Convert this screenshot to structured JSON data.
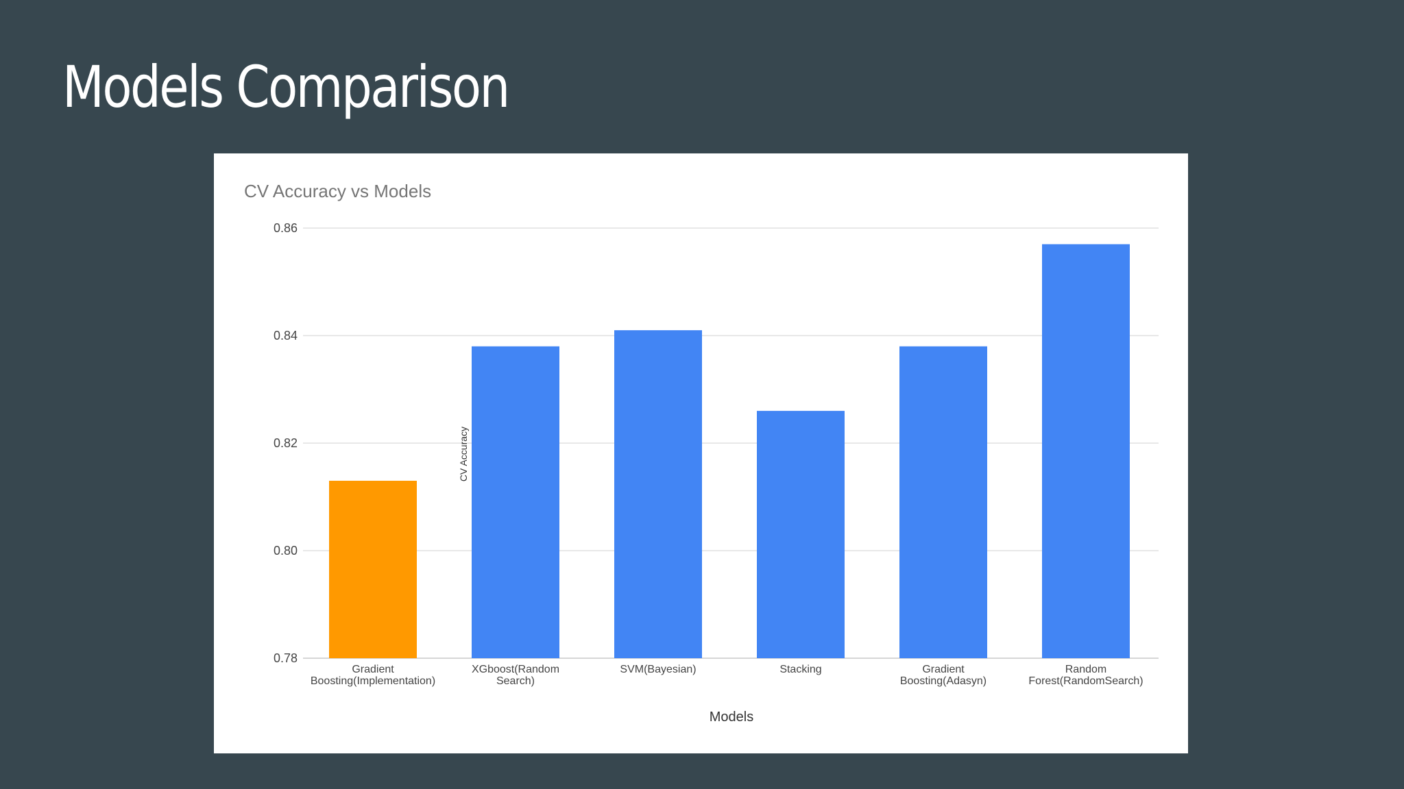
{
  "slide": {
    "title": "Models Comparison"
  },
  "chart_data": {
    "type": "bar",
    "title": "CV Accuracy vs Models",
    "xlabel": "Models",
    "ylabel": "CV Accuracy",
    "categories": [
      [
        "Gradient",
        "Boosting(Implementation)"
      ],
      [
        "XGboost(Random",
        "Search)"
      ],
      [
        "SVM(Bayesian)"
      ],
      [
        "Stacking"
      ],
      [
        "Gradient",
        "Boosting(Adasyn)"
      ],
      [
        "Random",
        "Forest(RandomSearch)"
      ]
    ],
    "values": [
      0.813,
      0.838,
      0.841,
      0.826,
      0.838,
      0.857
    ],
    "bar_colors": [
      "#ff9900",
      "#4285f4",
      "#4285f4",
      "#4285f4",
      "#4285f4",
      "#4285f4"
    ],
    "ylim": [
      0.78,
      0.86
    ],
    "yticks": [
      "0.78",
      "0.80",
      "0.82",
      "0.84",
      "0.86"
    ],
    "grid": true,
    "legend": "none"
  }
}
